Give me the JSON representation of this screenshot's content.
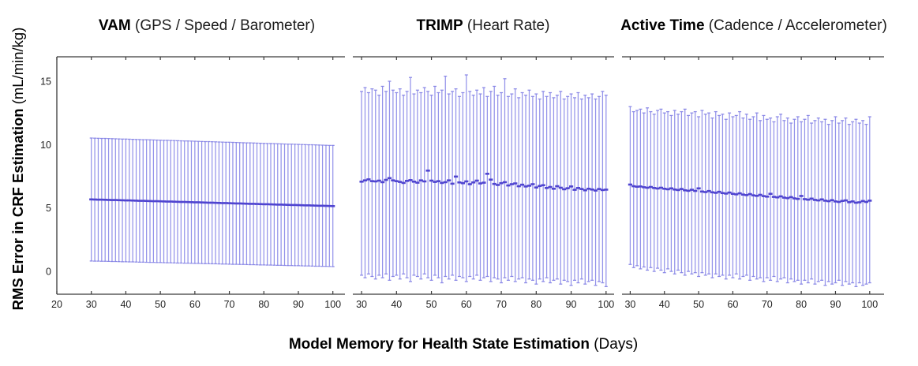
{
  "figure": {
    "ylabel_bold": "RMS Error in CRF Estimation",
    "ylabel_rest": " (mL/min/kg)",
    "xlabel_bold": "Model Memory for Health State Estimation",
    "xlabel_rest": " (Days)",
    "colors": {
      "bar": "#9493ea",
      "cap": "#8a88e6",
      "mean": "#4f44d0",
      "axis": "#3a3a3a",
      "tick_label": "#1f1f1f",
      "background": "#ffffff"
    }
  },
  "chart_data": [
    {
      "type": "errorbar",
      "title_bold": "VAM",
      "title_rest": " (GPS / Speed / Barometer)",
      "xlabel": "Model Memory for Health State Estimation (Days)",
      "ylabel": "RMS Error in CRF Estimation (mL/min/kg)",
      "x_start": 30,
      "x_step": 1,
      "xlim": [
        20,
        103.5
      ],
      "ylim": [
        -1.8,
        16.93
      ],
      "xticks": [
        20,
        30,
        40,
        50,
        60,
        70,
        80,
        90,
        100
      ],
      "yticks": [
        0,
        5,
        10,
        15
      ],
      "show_ytick_labels": true,
      "grid": false,
      "legend": null,
      "mean": [
        5.68,
        5.67,
        5.66,
        5.66,
        5.65,
        5.64,
        5.63,
        5.63,
        5.62,
        5.61,
        5.6,
        5.6,
        5.59,
        5.58,
        5.57,
        5.57,
        5.56,
        5.55,
        5.54,
        5.54,
        5.53,
        5.52,
        5.51,
        5.51,
        5.5,
        5.49,
        5.48,
        5.48,
        5.47,
        5.46,
        5.45,
        5.45,
        5.44,
        5.43,
        5.42,
        5.42,
        5.41,
        5.4,
        5.39,
        5.39,
        5.38,
        5.37,
        5.36,
        5.36,
        5.35,
        5.34,
        5.33,
        5.33,
        5.32,
        5.31,
        5.3,
        5.3,
        5.29,
        5.28,
        5.27,
        5.27,
        5.26,
        5.25,
        5.24,
        5.24,
        5.23,
        5.22,
        5.21,
        5.21,
        5.2,
        5.19,
        5.18,
        5.18,
        5.17,
        5.16,
        5.15
      ],
      "upper": [
        10.52,
        10.51,
        10.5,
        10.49,
        10.49,
        10.48,
        10.47,
        10.46,
        10.45,
        10.44,
        10.44,
        10.43,
        10.42,
        10.41,
        10.4,
        10.39,
        10.39,
        10.38,
        10.37,
        10.36,
        10.35,
        10.34,
        10.34,
        10.33,
        10.32,
        10.31,
        10.3,
        10.29,
        10.29,
        10.28,
        10.27,
        10.26,
        10.25,
        10.24,
        10.24,
        10.23,
        10.22,
        10.21,
        10.2,
        10.19,
        10.19,
        10.18,
        10.17,
        10.16,
        10.15,
        10.14,
        10.14,
        10.13,
        10.12,
        10.11,
        10.1,
        10.09,
        10.09,
        10.08,
        10.07,
        10.06,
        10.05,
        10.04,
        10.04,
        10.03,
        10.02,
        10.01,
        10.0,
        9.99,
        9.99,
        9.98,
        9.97,
        9.96,
        9.95,
        9.94,
        9.94
      ],
      "lower": [
        0.82,
        0.81,
        0.81,
        0.8,
        0.8,
        0.79,
        0.78,
        0.78,
        0.77,
        0.76,
        0.76,
        0.75,
        0.75,
        0.74,
        0.73,
        0.73,
        0.72,
        0.71,
        0.71,
        0.7,
        0.7,
        0.69,
        0.68,
        0.68,
        0.67,
        0.66,
        0.66,
        0.65,
        0.65,
        0.64,
        0.63,
        0.63,
        0.62,
        0.61,
        0.61,
        0.6,
        0.6,
        0.59,
        0.58,
        0.58,
        0.57,
        0.56,
        0.56,
        0.55,
        0.55,
        0.54,
        0.53,
        0.53,
        0.52,
        0.51,
        0.51,
        0.5,
        0.5,
        0.49,
        0.48,
        0.48,
        0.47,
        0.46,
        0.46,
        0.45,
        0.45,
        0.44,
        0.43,
        0.43,
        0.42,
        0.41,
        0.41,
        0.4,
        0.4,
        0.39,
        0.38
      ]
    },
    {
      "type": "errorbar",
      "title_bold": "TRIMP",
      "title_rest": " (Heart Rate)",
      "x_start": 30,
      "x_step": 1,
      "xlim": [
        27.5,
        102.3
      ],
      "ylim": [
        -1.8,
        16.93
      ],
      "xticks": [
        30,
        40,
        50,
        60,
        70,
        80,
        90,
        100
      ],
      "yticks": [
        0,
        5,
        10,
        15
      ],
      "show_ytick_labels": false,
      "grid": false,
      "legend": null,
      "mean": [
        7.08,
        7.18,
        7.26,
        7.12,
        7.1,
        7.16,
        7.04,
        7.22,
        7.36,
        7.18,
        7.12,
        7.06,
        6.98,
        7.14,
        7.2,
        7.08,
        7.0,
        7.18,
        7.1,
        7.95,
        7.16,
        7.06,
        7.12,
        6.98,
        7.04,
        7.18,
        6.92,
        7.48,
        7.02,
        6.96,
        7.1,
        6.88,
        7.02,
        7.16,
        6.94,
        7.0,
        7.7,
        7.24,
        6.9,
        6.82,
        6.96,
        7.04,
        6.78,
        6.88,
        6.94,
        6.72,
        6.84,
        6.7,
        6.76,
        6.88,
        6.62,
        6.74,
        6.8,
        6.58,
        6.66,
        6.52,
        6.72,
        6.6,
        6.48,
        6.56,
        6.7,
        6.44,
        6.58,
        6.5,
        6.4,
        6.52,
        6.46,
        6.38,
        6.5,
        6.42,
        6.45
      ],
      "upper": [
        14.2,
        14.5,
        14.1,
        14.4,
        14.3,
        13.9,
        14.6,
        14.2,
        15.0,
        14.3,
        14.1,
        14.4,
        13.9,
        14.2,
        15.3,
        14.0,
        14.3,
        14.1,
        14.5,
        14.2,
        13.9,
        14.6,
        14.1,
        14.3,
        15.4,
        14.0,
        14.2,
        14.4,
        13.8,
        14.1,
        15.5,
        14.2,
        13.9,
        14.3,
        14.0,
        14.5,
        13.8,
        14.2,
        14.6,
        13.9,
        14.1,
        15.2,
        13.8,
        14.0,
        14.4,
        13.7,
        14.1,
        13.9,
        14.3,
        13.8,
        14.0,
        13.6,
        14.2,
        13.8,
        14.1,
        13.7,
        13.9,
        14.2,
        13.6,
        13.8,
        14.0,
        13.7,
        14.1,
        13.6,
        13.9,
        13.7,
        14.0,
        13.6,
        13.8,
        14.2,
        13.9
      ],
      "lower": [
        -0.3,
        -0.5,
        -0.2,
        -0.4,
        -0.6,
        -0.3,
        -0.5,
        -0.2,
        -0.7,
        -0.4,
        -0.3,
        -0.6,
        -0.2,
        -0.5,
        -0.8,
        -0.3,
        -0.4,
        -0.6,
        -0.2,
        -0.5,
        -0.7,
        -0.3,
        -0.5,
        -0.9,
        -0.4,
        -0.6,
        -0.3,
        -0.7,
        -0.4,
        -0.5,
        -0.8,
        -0.4,
        -0.6,
        -0.3,
        -0.7,
        -0.5,
        -0.4,
        -0.8,
        -0.5,
        -0.6,
        -0.9,
        -0.5,
        -0.7,
        -0.4,
        -0.8,
        -0.6,
        -0.5,
        -0.9,
        -0.6,
        -0.7,
        -1.0,
        -0.6,
        -0.8,
        -0.5,
        -0.9,
        -0.7,
        -0.6,
        -1.0,
        -0.7,
        -0.8,
        -1.1,
        -0.7,
        -0.9,
        -0.6,
        -1.0,
        -0.8,
        -0.7,
        -1.1,
        -0.8,
        -0.9,
        -1.2
      ]
    },
    {
      "type": "errorbar",
      "title_bold": "Active Time",
      "title_rest": " (Cadence / Accelerometer)",
      "x_start": 30,
      "x_step": 1,
      "xlim": [
        27.6,
        104.2
      ],
      "ylim": [
        -1.8,
        16.93
      ],
      "xticks": [
        30,
        40,
        50,
        60,
        70,
        80,
        90,
        100
      ],
      "yticks": [
        0,
        5,
        10,
        15
      ],
      "show_ytick_labels": false,
      "grid": false,
      "legend": null,
      "mean": [
        6.85,
        6.72,
        6.68,
        6.7,
        6.64,
        6.6,
        6.66,
        6.58,
        6.54,
        6.6,
        6.52,
        6.48,
        6.55,
        6.46,
        6.42,
        6.5,
        6.4,
        6.36,
        6.44,
        6.35,
        6.55,
        6.3,
        6.26,
        6.34,
        6.24,
        6.2,
        6.28,
        6.18,
        6.14,
        6.22,
        6.12,
        6.08,
        6.16,
        6.06,
        6.02,
        6.1,
        6.0,
        5.96,
        6.04,
        5.94,
        5.9,
        6.12,
        5.88,
        5.84,
        5.92,
        5.82,
        5.78,
        5.86,
        5.76,
        5.72,
        5.95,
        5.7,
        5.66,
        5.74,
        5.64,
        5.6,
        5.68,
        5.58,
        5.54,
        5.62,
        5.52,
        5.48,
        5.56,
        5.6,
        5.46,
        5.52,
        5.42,
        5.45,
        5.55,
        5.48,
        5.58
      ],
      "upper": [
        13.0,
        12.6,
        12.7,
        12.8,
        12.5,
        12.9,
        12.6,
        12.4,
        12.7,
        12.8,
        12.5,
        12.6,
        12.3,
        12.7,
        12.4,
        12.6,
        12.8,
        12.3,
        12.5,
        12.6,
        12.2,
        12.7,
        12.4,
        12.5,
        12.1,
        12.6,
        12.3,
        12.4,
        12.0,
        12.5,
        12.2,
        12.3,
        12.6,
        12.1,
        12.4,
        12.0,
        12.2,
        12.5,
        11.9,
        12.3,
        12.0,
        12.1,
        11.8,
        12.2,
        12.4,
        11.9,
        12.1,
        11.7,
        12.0,
        12.2,
        11.8,
        12.0,
        12.3,
        11.7,
        11.9,
        12.1,
        11.8,
        12.0,
        11.6,
        11.9,
        12.2,
        11.7,
        11.9,
        12.1,
        11.6,
        11.8,
        12.0,
        11.7,
        11.9,
        11.6,
        12.2
      ],
      "lower": [
        0.55,
        0.3,
        0.45,
        0.2,
        0.35,
        0.1,
        0.3,
        0.0,
        0.25,
        0.1,
        -0.1,
        0.2,
        0.0,
        -0.2,
        0.1,
        -0.1,
        -0.3,
        0.0,
        -0.2,
        -0.1,
        -0.4,
        -0.1,
        -0.3,
        -0.2,
        -0.5,
        -0.2,
        -0.4,
        -0.3,
        -0.6,
        -0.3,
        -0.5,
        -0.2,
        -0.6,
        -0.4,
        -0.3,
        -0.7,
        -0.4,
        -0.6,
        -0.5,
        -0.8,
        -0.5,
        -0.7,
        -0.4,
        -0.8,
        -0.6,
        -0.5,
        -0.9,
        -0.6,
        -0.8,
        -0.7,
        -1.0,
        -0.7,
        -0.9,
        -0.6,
        -1.0,
        -0.8,
        -0.7,
        -1.1,
        -0.8,
        -1.0,
        -0.9,
        -0.7,
        -1.1,
        -0.8,
        -1.0,
        -0.9,
        -1.2,
        -0.9,
        -1.1,
        -1.0,
        -0.9
      ]
    }
  ]
}
